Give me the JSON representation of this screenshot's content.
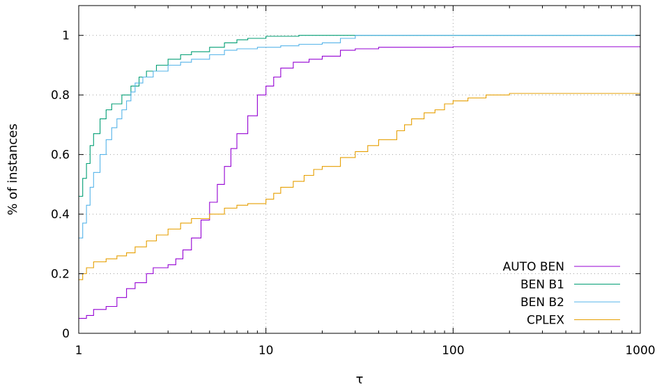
{
  "chart_data": {
    "type": "line",
    "title": "",
    "xlabel": "τ",
    "ylabel": "% of instances",
    "xscale": "log",
    "xlim": [
      1,
      1000
    ],
    "ylim": [
      0,
      1.1
    ],
    "xticks": [
      1,
      10,
      100,
      1000
    ],
    "xtick_labels": [
      "1",
      "10",
      "100",
      "1000"
    ],
    "yticks": [
      0,
      0.2,
      0.4,
      0.6,
      0.8,
      1
    ],
    "ytick_labels": [
      "0",
      "0.2",
      "0.4",
      "0.6",
      "0.8",
      "1"
    ],
    "grid": true,
    "legend_position": "bottom-right",
    "series": [
      {
        "name": "AUTO BEN",
        "color": "#9400d3",
        "points": [
          [
            1,
            0.05
          ],
          [
            1.1,
            0.06
          ],
          [
            1.2,
            0.08
          ],
          [
            1.4,
            0.09
          ],
          [
            1.6,
            0.12
          ],
          [
            1.8,
            0.15
          ],
          [
            2.0,
            0.17
          ],
          [
            2.3,
            0.2
          ],
          [
            2.5,
            0.22
          ],
          [
            3.0,
            0.23
          ],
          [
            3.3,
            0.25
          ],
          [
            3.6,
            0.28
          ],
          [
            4.0,
            0.32
          ],
          [
            4.5,
            0.38
          ],
          [
            5.0,
            0.44
          ],
          [
            5.5,
            0.5
          ],
          [
            6.0,
            0.56
          ],
          [
            6.5,
            0.62
          ],
          [
            7.0,
            0.67
          ],
          [
            8.0,
            0.73
          ],
          [
            9.0,
            0.8
          ],
          [
            10,
            0.83
          ],
          [
            11,
            0.86
          ],
          [
            12,
            0.89
          ],
          [
            14,
            0.91
          ],
          [
            17,
            0.92
          ],
          [
            20,
            0.93
          ],
          [
            25,
            0.95
          ],
          [
            30,
            0.955
          ],
          [
            40,
            0.96
          ],
          [
            100,
            0.962
          ],
          [
            1000,
            0.962
          ]
        ]
      },
      {
        "name": "BEN B1",
        "color": "#009e73",
        "points": [
          [
            1,
            0.46
          ],
          [
            1.05,
            0.52
          ],
          [
            1.1,
            0.57
          ],
          [
            1.15,
            0.63
          ],
          [
            1.2,
            0.67
          ],
          [
            1.3,
            0.72
          ],
          [
            1.4,
            0.75
          ],
          [
            1.5,
            0.77
          ],
          [
            1.7,
            0.8
          ],
          [
            1.9,
            0.83
          ],
          [
            2.1,
            0.86
          ],
          [
            2.3,
            0.88
          ],
          [
            2.6,
            0.9
          ],
          [
            3.0,
            0.92
          ],
          [
            3.5,
            0.935
          ],
          [
            4.0,
            0.945
          ],
          [
            5.0,
            0.96
          ],
          [
            6.0,
            0.975
          ],
          [
            7.0,
            0.985
          ],
          [
            8.0,
            0.99
          ],
          [
            10,
            0.997
          ],
          [
            15,
            1.0
          ],
          [
            1000,
            1.0
          ]
        ]
      },
      {
        "name": "BEN B2",
        "color": "#56b4e9",
        "points": [
          [
            1,
            0.32
          ],
          [
            1.05,
            0.37
          ],
          [
            1.1,
            0.43
          ],
          [
            1.15,
            0.49
          ],
          [
            1.2,
            0.54
          ],
          [
            1.3,
            0.6
          ],
          [
            1.4,
            0.65
          ],
          [
            1.5,
            0.69
          ],
          [
            1.6,
            0.72
          ],
          [
            1.7,
            0.75
          ],
          [
            1.8,
            0.78
          ],
          [
            1.9,
            0.81
          ],
          [
            2.0,
            0.84
          ],
          [
            2.2,
            0.86
          ],
          [
            2.5,
            0.88
          ],
          [
            3.0,
            0.9
          ],
          [
            3.5,
            0.91
          ],
          [
            4.0,
            0.92
          ],
          [
            5.0,
            0.935
          ],
          [
            6.0,
            0.95
          ],
          [
            7.0,
            0.955
          ],
          [
            9.0,
            0.96
          ],
          [
            12,
            0.965
          ],
          [
            15,
            0.97
          ],
          [
            20,
            0.975
          ],
          [
            25,
            0.99
          ],
          [
            30,
            1.0
          ],
          [
            1000,
            1.0
          ]
        ]
      },
      {
        "name": "CPLEX",
        "color": "#e69f00",
        "points": [
          [
            1,
            0.18
          ],
          [
            1.05,
            0.2
          ],
          [
            1.1,
            0.22
          ],
          [
            1.2,
            0.24
          ],
          [
            1.4,
            0.25
          ],
          [
            1.6,
            0.26
          ],
          [
            1.8,
            0.27
          ],
          [
            2.0,
            0.29
          ],
          [
            2.3,
            0.31
          ],
          [
            2.6,
            0.33
          ],
          [
            3.0,
            0.35
          ],
          [
            3.5,
            0.37
          ],
          [
            4.0,
            0.385
          ],
          [
            5.0,
            0.4
          ],
          [
            6.0,
            0.42
          ],
          [
            7.0,
            0.43
          ],
          [
            8.0,
            0.435
          ],
          [
            10,
            0.45
          ],
          [
            11,
            0.47
          ],
          [
            12,
            0.49
          ],
          [
            14,
            0.51
          ],
          [
            16,
            0.53
          ],
          [
            18,
            0.55
          ],
          [
            20,
            0.56
          ],
          [
            25,
            0.59
          ],
          [
            30,
            0.61
          ],
          [
            35,
            0.63
          ],
          [
            40,
            0.65
          ],
          [
            50,
            0.68
          ],
          [
            55,
            0.7
          ],
          [
            60,
            0.72
          ],
          [
            70,
            0.74
          ],
          [
            80,
            0.75
          ],
          [
            90,
            0.77
          ],
          [
            100,
            0.78
          ],
          [
            120,
            0.79
          ],
          [
            150,
            0.8
          ],
          [
            200,
            0.805
          ],
          [
            1000,
            0.805
          ]
        ]
      }
    ]
  }
}
